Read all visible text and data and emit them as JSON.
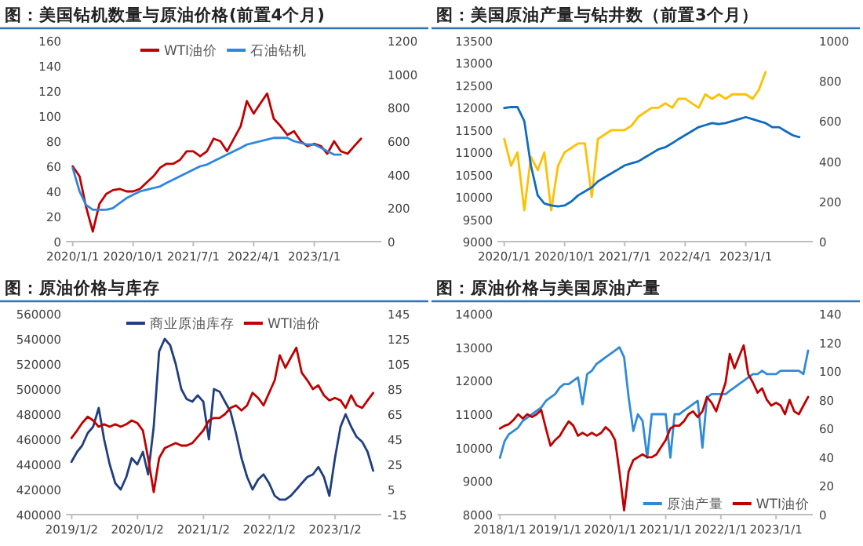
{
  "chart_data": [
    {
      "type": "line",
      "title": "图：美国钻机数量与原油价格(前置4个月)",
      "legend": "top",
      "xlim": [
        "2019-12-01",
        "2023-11-01"
      ],
      "xticks": [
        {
          "value": "2020-01-01",
          "label": "2020/1/1"
        },
        {
          "value": "2020-10-01",
          "label": "2020/10/1"
        },
        {
          "value": "2021-07-01",
          "label": "2021/7/1"
        },
        {
          "value": "2022-04-01",
          "label": "2022/4/1"
        },
        {
          "value": "2023-01-01",
          "label": "2023/1/1"
        }
      ],
      "ylim": [
        0,
        160
      ],
      "yticks": [
        0,
        20,
        40,
        60,
        80,
        100,
        120,
        140,
        160
      ],
      "y2lim": [
        0,
        1200
      ],
      "y2ticks": [
        0,
        200,
        400,
        600,
        800,
        1000,
        1200
      ],
      "series": [
        {
          "name": "WTI油价",
          "color": "#c00000",
          "axis": "y",
          "x": [
            "2020-01",
            "2020-02",
            "2020-03",
            "2020-04",
            "2020-05",
            "2020-06",
            "2020-07",
            "2020-08",
            "2020-09",
            "2020-10",
            "2020-11",
            "2020-12",
            "2021-01",
            "2021-02",
            "2021-03",
            "2021-04",
            "2021-05",
            "2021-06",
            "2021-07",
            "2021-08",
            "2021-09",
            "2021-10",
            "2021-11",
            "2021-12",
            "2022-01",
            "2022-02",
            "2022-03",
            "2022-04",
            "2022-05",
            "2022-06",
            "2022-07",
            "2022-08",
            "2022-09",
            "2022-10",
            "2022-11",
            "2022-12",
            "2023-01",
            "2023-02",
            "2023-03",
            "2023-04",
            "2023-05",
            "2023-06",
            "2023-07",
            "2023-08"
          ],
          "values": [
            60,
            52,
            28,
            8,
            30,
            38,
            41,
            42,
            40,
            40,
            42,
            47,
            52,
            59,
            62,
            62,
            65,
            72,
            72,
            68,
            72,
            82,
            80,
            72,
            82,
            92,
            112,
            102,
            110,
            118,
            98,
            92,
            85,
            88,
            80,
            76,
            78,
            76,
            70,
            80,
            72,
            70,
            76,
            82
          ]
        },
        {
          "name": "石油钻机",
          "color": "#2e86de",
          "axis": "y2",
          "x": [
            "2020-01",
            "2020-02",
            "2020-03",
            "2020-04",
            "2020-05",
            "2020-06",
            "2020-07",
            "2020-08",
            "2020-09",
            "2020-10",
            "2020-11",
            "2020-12",
            "2021-01",
            "2021-02",
            "2021-03",
            "2021-04",
            "2021-05",
            "2021-06",
            "2021-07",
            "2021-08",
            "2021-09",
            "2021-10",
            "2021-11",
            "2021-12",
            "2022-01",
            "2022-02",
            "2022-03",
            "2022-04",
            "2022-05",
            "2022-06",
            "2022-07",
            "2022-08",
            "2022-09",
            "2022-10",
            "2022-11",
            "2022-12",
            "2023-01",
            "2023-02",
            "2023-03",
            "2023-04",
            "2023-05"
          ],
          "values": [
            440,
            300,
            220,
            190,
            190,
            190,
            200,
            230,
            260,
            280,
            300,
            310,
            320,
            330,
            350,
            370,
            390,
            410,
            430,
            450,
            460,
            480,
            500,
            520,
            540,
            560,
            580,
            590,
            600,
            610,
            620,
            620,
            620,
            600,
            590,
            580,
            580,
            560,
            540,
            520,
            520
          ]
        }
      ]
    },
    {
      "type": "line",
      "title": "图：美国原油产量与钻井数（前置3个月）",
      "xlim": [
        "2019-12-01",
        "2023-11-01"
      ],
      "xticks": [
        {
          "value": "2020-01-01",
          "label": "2020/1/1"
        },
        {
          "value": "2020-10-01",
          "label": "2020/10/1"
        },
        {
          "value": "2021-07-01",
          "label": "2021/7/1"
        },
        {
          "value": "2022-04-01",
          "label": "2022/4/1"
        },
        {
          "value": "2023-01-01",
          "label": "2023/1/1"
        }
      ],
      "ylim": [
        9000,
        13500
      ],
      "yticks": [
        9000,
        9500,
        10000,
        10500,
        11000,
        11500,
        12000,
        12500,
        13000,
        13500
      ],
      "y2lim": [
        0,
        1000
      ],
      "y2ticks": [
        0,
        200,
        400,
        600,
        800,
        1000
      ],
      "series": [
        {
          "color": "#ffc000",
          "axis": "y",
          "x": [
            "2020-01",
            "2020-02",
            "2020-03",
            "2020-04",
            "2020-05",
            "2020-06",
            "2020-07",
            "2020-08",
            "2020-09",
            "2020-10",
            "2020-11",
            "2020-12",
            "2021-01",
            "2021-02",
            "2021-03",
            "2021-04",
            "2021-05",
            "2021-06",
            "2021-07",
            "2021-08",
            "2021-09",
            "2021-10",
            "2021-11",
            "2021-12",
            "2022-01",
            "2022-02",
            "2022-03",
            "2022-04",
            "2022-05",
            "2022-06",
            "2022-07",
            "2022-08",
            "2022-09",
            "2022-10",
            "2022-11",
            "2022-12",
            "2023-01",
            "2023-02",
            "2023-03",
            "2023-04"
          ],
          "values": [
            11300,
            10700,
            11000,
            9700,
            10900,
            10600,
            11000,
            9700,
            10700,
            11000,
            11100,
            11200,
            11200,
            10000,
            11300,
            11400,
            11500,
            11500,
            11500,
            11600,
            11800,
            11900,
            12000,
            12000,
            12100,
            12000,
            12200,
            12200,
            12100,
            12000,
            12300,
            12200,
            12300,
            12200,
            12300,
            12300,
            12300,
            12200,
            12400,
            12800
          ]
        },
        {
          "color": "#0f6cc0",
          "axis": "y2",
          "x": [
            "2020-01",
            "2020-02",
            "2020-03",
            "2020-04",
            "2020-05",
            "2020-06",
            "2020-07",
            "2020-08",
            "2020-09",
            "2020-10",
            "2020-11",
            "2020-12",
            "2021-01",
            "2021-02",
            "2021-03",
            "2021-04",
            "2021-05",
            "2021-06",
            "2021-07",
            "2021-08",
            "2021-09",
            "2021-10",
            "2021-11",
            "2021-12",
            "2022-01",
            "2022-02",
            "2022-03",
            "2022-04",
            "2022-05",
            "2022-06",
            "2022-07",
            "2022-08",
            "2022-09",
            "2022-10",
            "2022-11",
            "2022-12",
            "2023-01",
            "2023-02",
            "2023-03",
            "2023-04",
            "2023-05",
            "2023-06",
            "2023-07",
            "2023-08",
            "2023-09"
          ],
          "values": [
            665,
            670,
            670,
            600,
            380,
            230,
            190,
            180,
            175,
            180,
            200,
            230,
            250,
            270,
            300,
            320,
            340,
            360,
            380,
            390,
            400,
            420,
            440,
            460,
            470,
            490,
            510,
            530,
            550,
            570,
            580,
            590,
            585,
            590,
            600,
            610,
            620,
            610,
            600,
            590,
            570,
            570,
            550,
            530,
            520
          ]
        }
      ]
    },
    {
      "type": "line",
      "title": "图：原油价格与库存",
      "legend": "top",
      "xlim": [
        "2018-12-01",
        "2023-09-15"
      ],
      "xticks": [
        {
          "value": "2019-01-02",
          "label": "2019/1/2"
        },
        {
          "value": "2020-01-02",
          "label": "2020/1/2"
        },
        {
          "value": "2021-01-02",
          "label": "2021/1/2"
        },
        {
          "value": "2022-01-02",
          "label": "2022/1/2"
        },
        {
          "value": "2023-01-02",
          "label": "2023/1/2"
        }
      ],
      "ylim": [
        400000,
        560000
      ],
      "yticks": [
        400000,
        420000,
        440000,
        460000,
        480000,
        500000,
        520000,
        540000,
        560000
      ],
      "y2lim": [
        -15,
        145
      ],
      "y2ticks": [
        -15,
        5,
        25,
        45,
        65,
        85,
        105,
        125,
        145
      ],
      "series": [
        {
          "name": "商业原油库存",
          "color": "#203f7f",
          "axis": "y",
          "x": [
            "2019-01",
            "2019-02",
            "2019-03",
            "2019-04",
            "2019-05",
            "2019-06",
            "2019-07",
            "2019-08",
            "2019-09",
            "2019-10",
            "2019-11",
            "2019-12",
            "2020-01",
            "2020-02",
            "2020-03",
            "2020-04",
            "2020-05",
            "2020-06",
            "2020-07",
            "2020-08",
            "2020-09",
            "2020-10",
            "2020-11",
            "2020-12",
            "2021-01",
            "2021-02",
            "2021-03",
            "2021-04",
            "2021-05",
            "2021-06",
            "2021-07",
            "2021-08",
            "2021-09",
            "2021-10",
            "2021-11",
            "2021-12",
            "2022-01",
            "2022-02",
            "2022-03",
            "2022-04",
            "2022-05",
            "2022-06",
            "2022-07",
            "2022-08",
            "2022-09",
            "2022-10",
            "2022-11",
            "2022-12",
            "2023-01",
            "2023-02",
            "2023-03",
            "2023-04",
            "2023-05",
            "2023-06",
            "2023-07",
            "2023-08"
          ],
          "values": [
            442000,
            450000,
            455000,
            465000,
            470000,
            485000,
            460000,
            440000,
            425000,
            420000,
            430000,
            445000,
            440000,
            450000,
            432000,
            470000,
            530000,
            540000,
            535000,
            520000,
            500000,
            492000,
            490000,
            495000,
            490000,
            460000,
            500000,
            498000,
            490000,
            482000,
            465000,
            445000,
            430000,
            420000,
            428000,
            432000,
            425000,
            415000,
            412000,
            412000,
            415000,
            420000,
            425000,
            430000,
            432000,
            438000,
            430000,
            415000,
            445000,
            470000,
            480000,
            470000,
            462000,
            458000,
            450000,
            435000
          ]
        },
        {
          "name": "WTI油价",
          "color": "#c00000",
          "axis": "y2",
          "x": [
            "2019-01",
            "2019-02",
            "2019-03",
            "2019-04",
            "2019-05",
            "2019-06",
            "2019-07",
            "2019-08",
            "2019-09",
            "2019-10",
            "2019-11",
            "2019-12",
            "2020-01",
            "2020-02",
            "2020-03",
            "2020-04",
            "2020-05",
            "2020-06",
            "2020-07",
            "2020-08",
            "2020-09",
            "2020-10",
            "2020-11",
            "2020-12",
            "2021-01",
            "2021-02",
            "2021-03",
            "2021-04",
            "2021-05",
            "2021-06",
            "2021-07",
            "2021-08",
            "2021-09",
            "2021-10",
            "2021-11",
            "2021-12",
            "2022-01",
            "2022-02",
            "2022-03",
            "2022-04",
            "2022-05",
            "2022-06",
            "2022-07",
            "2022-08",
            "2022-09",
            "2022-10",
            "2022-11",
            "2022-12",
            "2023-01",
            "2023-02",
            "2023-03",
            "2023-04",
            "2023-05",
            "2023-06",
            "2023-07",
            "2023-08"
          ],
          "values": [
            46,
            52,
            58,
            63,
            60,
            55,
            57,
            55,
            57,
            55,
            57,
            60,
            58,
            52,
            30,
            3,
            30,
            38,
            40,
            42,
            40,
            40,
            42,
            47,
            52,
            60,
            62,
            62,
            65,
            70,
            72,
            68,
            72,
            82,
            78,
            72,
            82,
            92,
            112,
            102,
            110,
            118,
            98,
            92,
            85,
            88,
            80,
            76,
            78,
            76,
            70,
            80,
            72,
            70,
            76,
            82
          ]
        }
      ]
    },
    {
      "type": "line",
      "title": "图：原油价格与美国原油产量",
      "legend": "bottom",
      "xlim": [
        "2017-12-15",
        "2023-09-01"
      ],
      "xticks": [
        {
          "value": "2018-01-01",
          "label": "2018/1/1"
        },
        {
          "value": "2019-01-01",
          "label": "2019/1/1"
        },
        {
          "value": "2020-01-01",
          "label": "2020/1/1"
        },
        {
          "value": "2021-01-01",
          "label": "2021/1/1"
        },
        {
          "value": "2022-01-01",
          "label": "2022/1/1"
        },
        {
          "value": "2023-01-01",
          "label": "2023/1/1"
        }
      ],
      "ylim": [
        8000,
        14000
      ],
      "yticks": [
        8000,
        9000,
        10000,
        11000,
        12000,
        13000,
        14000
      ],
      "y2lim": [
        0,
        140
      ],
      "y2ticks": [
        0,
        20,
        40,
        60,
        80,
        100,
        120,
        140
      ],
      "series": [
        {
          "name": "原油产量",
          "color": "#2f8ad8",
          "axis": "y",
          "x": [
            "2018-01",
            "2018-02",
            "2018-03",
            "2018-04",
            "2018-05",
            "2018-06",
            "2018-07",
            "2018-08",
            "2018-09",
            "2018-10",
            "2018-11",
            "2018-12",
            "2019-01",
            "2019-02",
            "2019-03",
            "2019-04",
            "2019-05",
            "2019-06",
            "2019-07",
            "2019-08",
            "2019-09",
            "2019-10",
            "2019-11",
            "2019-12",
            "2020-01",
            "2020-02",
            "2020-03",
            "2020-04",
            "2020-05",
            "2020-06",
            "2020-07",
            "2020-08",
            "2020-09",
            "2020-10",
            "2020-11",
            "2020-12",
            "2021-01",
            "2021-02",
            "2021-03",
            "2021-04",
            "2021-05",
            "2021-06",
            "2021-07",
            "2021-08",
            "2021-09",
            "2021-10",
            "2021-11",
            "2021-12",
            "2022-01",
            "2022-02",
            "2022-03",
            "2022-04",
            "2022-05",
            "2022-06",
            "2022-07",
            "2022-08",
            "2022-09",
            "2022-10",
            "2022-11",
            "2022-12",
            "2023-01",
            "2023-02",
            "2023-03",
            "2023-04",
            "2023-05",
            "2023-06",
            "2023-07",
            "2023-08"
          ],
          "values": [
            9700,
            10200,
            10400,
            10500,
            10600,
            10800,
            10900,
            11000,
            11100,
            11200,
            11400,
            11500,
            11600,
            11800,
            11900,
            11900,
            12000,
            12100,
            11300,
            12200,
            12300,
            12500,
            12600,
            12700,
            12800,
            12900,
            13000,
            12700,
            11500,
            10500,
            11000,
            10800,
            9700,
            11000,
            11000,
            11000,
            11000,
            9700,
            11000,
            11000,
            11100,
            11200,
            11300,
            11400,
            10000,
            11500,
            11600,
            11600,
            11600,
            11600,
            11700,
            11800,
            11900,
            12000,
            12100,
            12200,
            12200,
            12300,
            12200,
            12200,
            12200,
            12300,
            12300,
            12300,
            12300,
            12300,
            12200,
            12900
          ]
        },
        {
          "name": "WTI油价",
          "color": "#c00000",
          "axis": "y2",
          "x": [
            "2018-01",
            "2018-02",
            "2018-03",
            "2018-04",
            "2018-05",
            "2018-06",
            "2018-07",
            "2018-08",
            "2018-09",
            "2018-10",
            "2018-11",
            "2018-12",
            "2019-01",
            "2019-02",
            "2019-03",
            "2019-04",
            "2019-05",
            "2019-06",
            "2019-07",
            "2019-08",
            "2019-09",
            "2019-10",
            "2019-11",
            "2019-12",
            "2020-01",
            "2020-02",
            "2020-03",
            "2020-04",
            "2020-05",
            "2020-06",
            "2020-07",
            "2020-08",
            "2020-09",
            "2020-10",
            "2020-11",
            "2020-12",
            "2021-01",
            "2021-02",
            "2021-03",
            "2021-04",
            "2021-05",
            "2021-06",
            "2021-07",
            "2021-08",
            "2021-09",
            "2021-10",
            "2021-11",
            "2021-12",
            "2022-01",
            "2022-02",
            "2022-03",
            "2022-04",
            "2022-05",
            "2022-06",
            "2022-07",
            "2022-08",
            "2022-09",
            "2022-10",
            "2022-11",
            "2022-12",
            "2023-01",
            "2023-02",
            "2023-03",
            "2023-04",
            "2023-05",
            "2023-06",
            "2023-07",
            "2023-08"
          ],
          "values": [
            60,
            62,
            63,
            66,
            70,
            67,
            70,
            68,
            70,
            73,
            60,
            48,
            52,
            55,
            60,
            65,
            62,
            55,
            57,
            55,
            57,
            55,
            57,
            61,
            58,
            52,
            30,
            3,
            30,
            38,
            40,
            42,
            40,
            40,
            42,
            47,
            52,
            60,
            62,
            62,
            65,
            70,
            72,
            68,
            72,
            82,
            78,
            72,
            82,
            92,
            112,
            102,
            110,
            118,
            98,
            92,
            85,
            88,
            80,
            76,
            78,
            76,
            70,
            80,
            72,
            70,
            76,
            82
          ]
        }
      ]
    }
  ]
}
